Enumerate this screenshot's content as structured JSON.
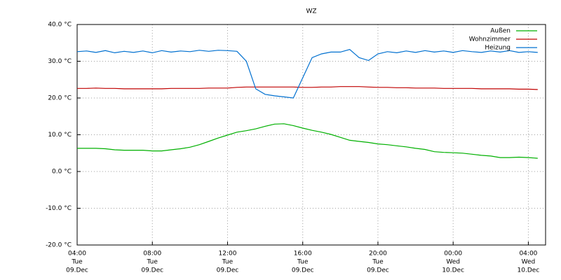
{
  "chart_data": {
    "type": "line",
    "title": "WZ",
    "x": [
      "09.Dec 04:00",
      "09.Dec 04:30",
      "09.Dec 05:00",
      "09.Dec 05:30",
      "09.Dec 06:00",
      "09.Dec 06:30",
      "09.Dec 07:00",
      "09.Dec 07:30",
      "09.Dec 08:00",
      "09.Dec 08:30",
      "09.Dec 09:00",
      "09.Dec 09:30",
      "09.Dec 10:00",
      "09.Dec 10:30",
      "09.Dec 11:00",
      "09.Dec 11:30",
      "09.Dec 12:00",
      "09.Dec 12:30",
      "09.Dec 13:00",
      "09.Dec 13:30",
      "09.Dec 14:00",
      "09.Dec 14:30",
      "09.Dec 15:00",
      "09.Dec 15:30",
      "09.Dec 16:00",
      "09.Dec 16:30",
      "09.Dec 17:00",
      "09.Dec 17:30",
      "09.Dec 18:00",
      "09.Dec 18:30",
      "09.Dec 19:00",
      "09.Dec 19:30",
      "09.Dec 20:00",
      "09.Dec 20:30",
      "09.Dec 21:00",
      "09.Dec 21:30",
      "09.Dec 22:00",
      "09.Dec 22:30",
      "09.Dec 23:00",
      "09.Dec 23:30",
      "10.Dec 00:00",
      "10.Dec 00:30",
      "10.Dec 01:00",
      "10.Dec 01:30",
      "10.Dec 02:00",
      "10.Dec 02:30",
      "10.Dec 03:00",
      "10.Dec 03:30",
      "10.Dec 04:00",
      "10.Dec 04:30"
    ],
    "series": [
      {
        "name": "Außen",
        "color": "#00b000",
        "values": [
          6.3,
          6.3,
          6.3,
          6.2,
          5.9,
          5.8,
          5.8,
          5.8,
          5.6,
          5.6,
          5.9,
          6.2,
          6.6,
          7.3,
          8.2,
          9.1,
          9.9,
          10.7,
          11.1,
          11.6,
          12.3,
          12.9,
          13.0,
          12.5,
          11.8,
          11.2,
          10.7,
          10.1,
          9.3,
          8.5,
          8.2,
          7.9,
          7.5,
          7.3,
          7.0,
          6.7,
          6.3,
          6.0,
          5.4,
          5.2,
          5.1,
          5.0,
          4.7,
          4.4,
          4.2,
          3.8,
          3.8,
          3.9,
          3.8,
          3.6
        ]
      },
      {
        "name": "Wohnzimmer",
        "color": "#c00000",
        "values": [
          22.6,
          22.6,
          22.7,
          22.6,
          22.6,
          22.5,
          22.5,
          22.5,
          22.5,
          22.5,
          22.6,
          22.6,
          22.6,
          22.6,
          22.7,
          22.7,
          22.7,
          22.9,
          23.0,
          23.0,
          23.0,
          23.0,
          23.0,
          23.0,
          22.9,
          22.9,
          23.0,
          23.0,
          23.1,
          23.1,
          23.1,
          23.0,
          22.9,
          22.9,
          22.8,
          22.8,
          22.7,
          22.7,
          22.7,
          22.6,
          22.6,
          22.6,
          22.6,
          22.5,
          22.5,
          22.5,
          22.5,
          22.4,
          22.4,
          22.3
        ]
      },
      {
        "name": "Heizung",
        "color": "#0070d0",
        "values": [
          32.6,
          32.8,
          32.4,
          32.9,
          32.3,
          32.7,
          32.4,
          32.8,
          32.3,
          32.9,
          32.5,
          32.8,
          32.6,
          33.0,
          32.7,
          33.0,
          32.9,
          32.7,
          30.0,
          22.5,
          21.0,
          20.6,
          20.3,
          20.0,
          25.5,
          31.0,
          32.0,
          32.5,
          32.5,
          33.2,
          31.0,
          30.2,
          32.0,
          32.6,
          32.3,
          32.8,
          32.4,
          32.9,
          32.5,
          32.8,
          32.4,
          32.9,
          32.6,
          32.4,
          32.8,
          32.5,
          32.9,
          32.4,
          32.6,
          32.4
        ]
      }
    ],
    "xlim": [
      "09.Dec 04:00",
      "10.Dec 04:55"
    ],
    "xticks": [
      {
        "value": "09.Dec 04:00",
        "label": [
          "04:00",
          "Tue",
          "09.Dec"
        ]
      },
      {
        "value": "09.Dec 08:00",
        "label": [
          "08:00",
          "Tue",
          "09.Dec"
        ]
      },
      {
        "value": "09.Dec 12:00",
        "label": [
          "12:00",
          "Tue",
          "09.Dec"
        ]
      },
      {
        "value": "09.Dec 16:00",
        "label": [
          "16:00",
          "Tue",
          "09.Dec"
        ]
      },
      {
        "value": "09.Dec 20:00",
        "label": [
          "20:00",
          "Tue",
          "09.Dec"
        ]
      },
      {
        "value": "10.Dec 00:00",
        "label": [
          "00:00",
          "Wed",
          "10.Dec"
        ]
      },
      {
        "value": "10.Dec 04:00",
        "label": [
          "04:00",
          "Wed",
          "10.Dec"
        ]
      }
    ],
    "ylim": [
      -20,
      40
    ],
    "yticks": [
      {
        "value": -20,
        "label": "-20.0 °C"
      },
      {
        "value": -10,
        "label": "-10.0 °C"
      },
      {
        "value": 0,
        "label": "0.0 °C"
      },
      {
        "value": 10,
        "label": "10.0 °C"
      },
      {
        "value": 20,
        "label": "20.0 °C"
      },
      {
        "value": 30,
        "label": "30.0 °C"
      },
      {
        "value": 40,
        "label": "40.0 °C"
      }
    ],
    "grid": true,
    "legend": "top-right"
  }
}
